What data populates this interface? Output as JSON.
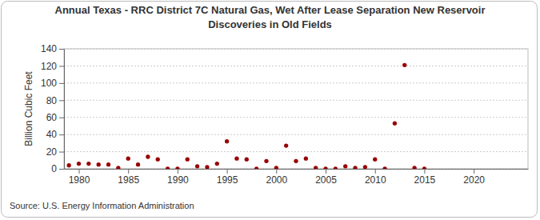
{
  "chart_data": {
    "type": "scatter",
    "title": [
      "Annual Texas - RRC District 7C Natural Gas, Wet After Lease Separation New Reservoir",
      "Discoveries in Old Fields"
    ],
    "y_label": "Billion Cubic Feet",
    "source": "Source: U.S. Energy Information Administration",
    "x": [
      1979,
      1980,
      1981,
      1982,
      1983,
      1984,
      1985,
      1986,
      1987,
      1988,
      1989,
      1990,
      1991,
      1992,
      1993,
      1994,
      1995,
      1996,
      1997,
      1998,
      1999,
      2000,
      2001,
      2002,
      2003,
      2004,
      2005,
      2006,
      2007,
      2008,
      2009,
      2010,
      2011,
      2012,
      2013,
      2014,
      2015
    ],
    "values": [
      4,
      6,
      6,
      5,
      5,
      1,
      12,
      5,
      14,
      11,
      0,
      0,
      11,
      3,
      2,
      6,
      32,
      12,
      11,
      0,
      9,
      1,
      27,
      9,
      12,
      1,
      0,
      0,
      3,
      1,
      2,
      11,
      0,
      53,
      121,
      1,
      0
    ],
    "color": "#990000",
    "marker": "circle",
    "xlim": [
      1978.5,
      2025.5
    ],
    "xticks": [
      1980,
      1985,
      1990,
      1995,
      2000,
      2005,
      2010,
      2015,
      2020
    ],
    "ylim": [
      0,
      140
    ],
    "yticks": [
      0,
      20,
      40,
      60,
      80,
      100,
      120,
      140
    ],
    "grid": true
  }
}
